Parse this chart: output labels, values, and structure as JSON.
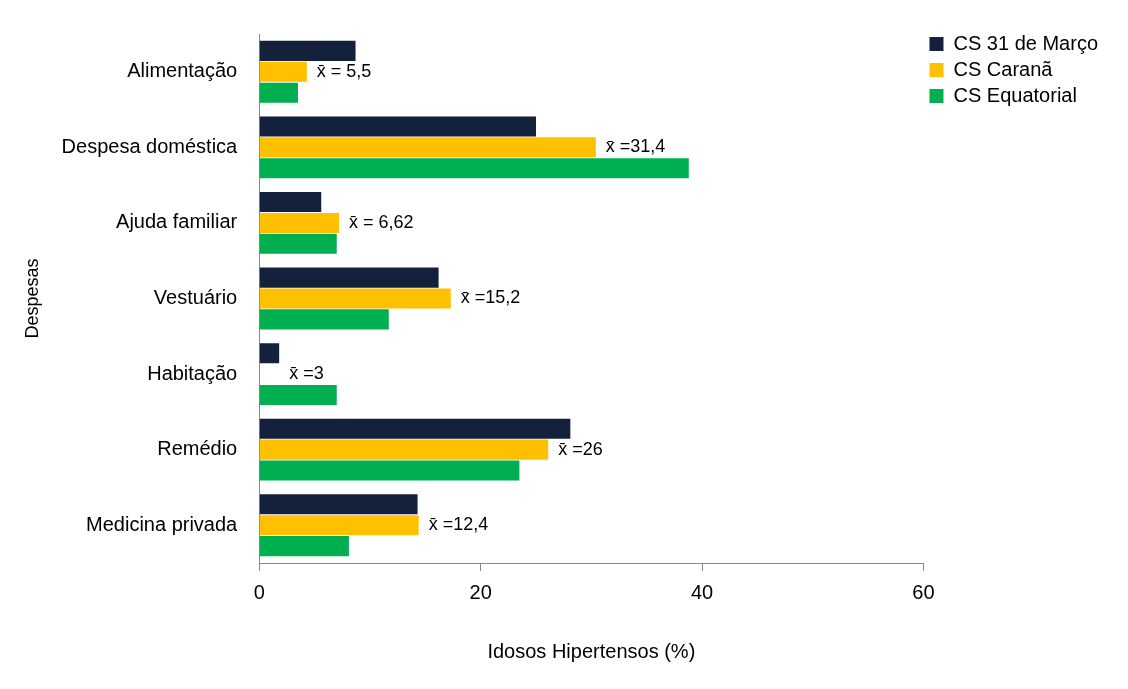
{
  "chart_data": {
    "type": "bar",
    "orientation": "horizontal",
    "xlabel": "Idosos Hipertensos (%)",
    "ylabel": "Despesas",
    "categories": [
      "Alimentação",
      "Despesa doméstica",
      "Ajuda familiar",
      "Vestuário",
      "Habitação",
      "Remédio",
      "Medicina privada"
    ],
    "series": [
      {
        "name": "CS 31 de Março",
        "color": "#14213d",
        "values": [
          8.7,
          25.0,
          5.6,
          16.2,
          1.8,
          28.1,
          14.3
        ]
      },
      {
        "name": "CS Caranã",
        "color": "#ffc000",
        "values": [
          4.3,
          30.4,
          7.2,
          17.3,
          null,
          26.1,
          14.4
        ]
      },
      {
        "name": "CS Equatorial",
        "color": "#00b050",
        "values": [
          3.5,
          38.8,
          7.0,
          11.7,
          7.0,
          23.5,
          8.1
        ]
      }
    ],
    "xlim": [
      0,
      60
    ],
    "xticks": [
      0,
      20,
      40,
      60
    ],
    "grid": false,
    "legend": "top right",
    "annotations": [
      "x̄ = 5,5",
      "x̄ =31,4",
      "x̄ = 6,62",
      "x̄ =15,2",
      "x̄ =3",
      "x̄ =26",
      "x̄ =12,4"
    ]
  }
}
